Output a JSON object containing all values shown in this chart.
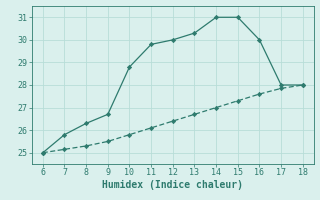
{
  "line1_x": [
    6,
    7,
    8,
    9,
    10,
    11,
    12,
    13,
    14,
    15,
    16,
    17,
    18
  ],
  "line1_y": [
    25.0,
    25.8,
    26.3,
    26.7,
    28.8,
    29.8,
    30.0,
    30.3,
    31.0,
    31.0,
    30.0,
    28.0,
    28.0
  ],
  "line2_x": [
    6,
    7,
    8,
    9,
    10,
    11,
    12,
    13,
    14,
    15,
    16,
    17,
    18
  ],
  "line2_y": [
    25.0,
    25.15,
    25.3,
    25.5,
    25.8,
    26.1,
    26.4,
    26.7,
    27.0,
    27.3,
    27.6,
    27.85,
    28.0
  ],
  "color": "#2e7b6e",
  "bg_color": "#daf0ed",
  "grid_color": "#b8ddd8",
  "xlabel": "Humidex (Indice chaleur)",
  "xlim": [
    5.5,
    18.5
  ],
  "ylim": [
    24.5,
    31.5
  ],
  "yticks": [
    25,
    26,
    27,
    28,
    29,
    30,
    31
  ],
  "xticks": [
    6,
    7,
    8,
    9,
    10,
    11,
    12,
    13,
    14,
    15,
    16,
    17,
    18
  ],
  "xlabel_fontsize": 7,
  "tick_fontsize": 6,
  "linewidth": 0.9,
  "markersize": 2.2
}
